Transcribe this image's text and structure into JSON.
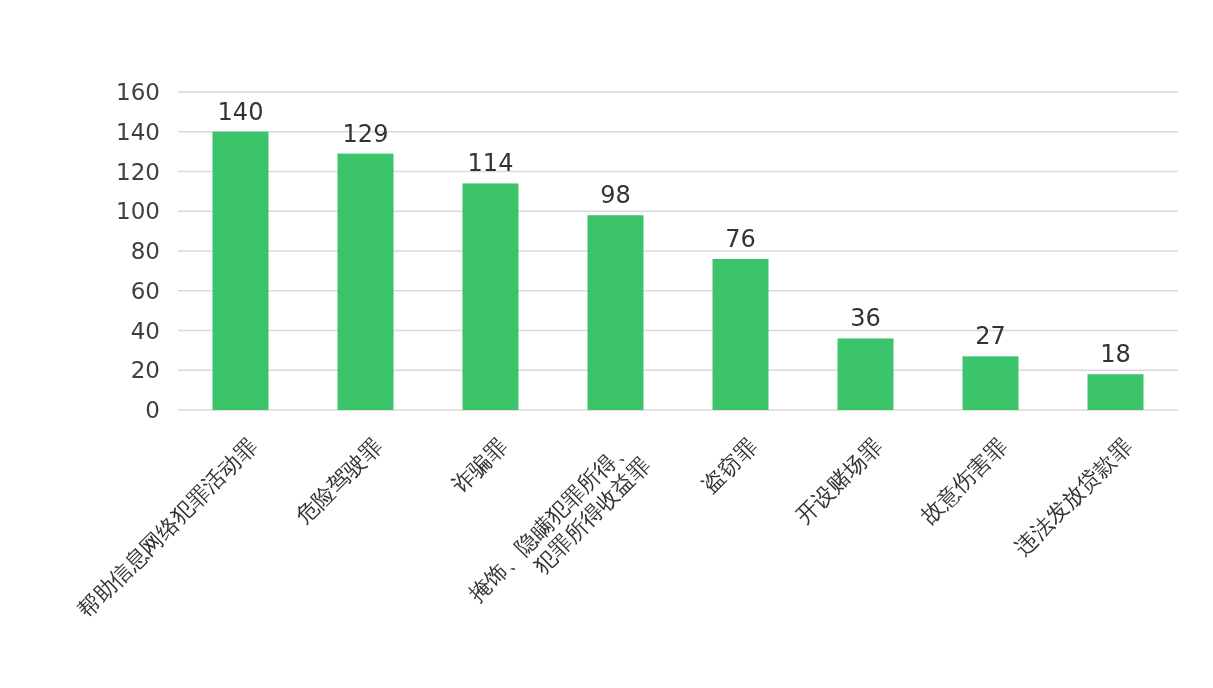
{
  "chart_data": {
    "type": "bar",
    "categories": [
      "帮助信息网络犯罪活动罪",
      "危险驾驶罪",
      "诈骗罪",
      "掩饰、隐瞒犯罪所得、\n犯罪所得收益罪",
      "盗窃罪",
      "开设赌场罪",
      "故意伤害罪",
      "违法发放贷款罪"
    ],
    "values": [
      140,
      129,
      114,
      98,
      76,
      36,
      27,
      18
    ],
    "color": "#3cc46a",
    "ylim": [
      0,
      160
    ],
    "yticks": [
      0,
      20,
      40,
      60,
      80,
      100,
      120,
      140,
      160
    ],
    "grid": "y",
    "data_labels": true
  }
}
